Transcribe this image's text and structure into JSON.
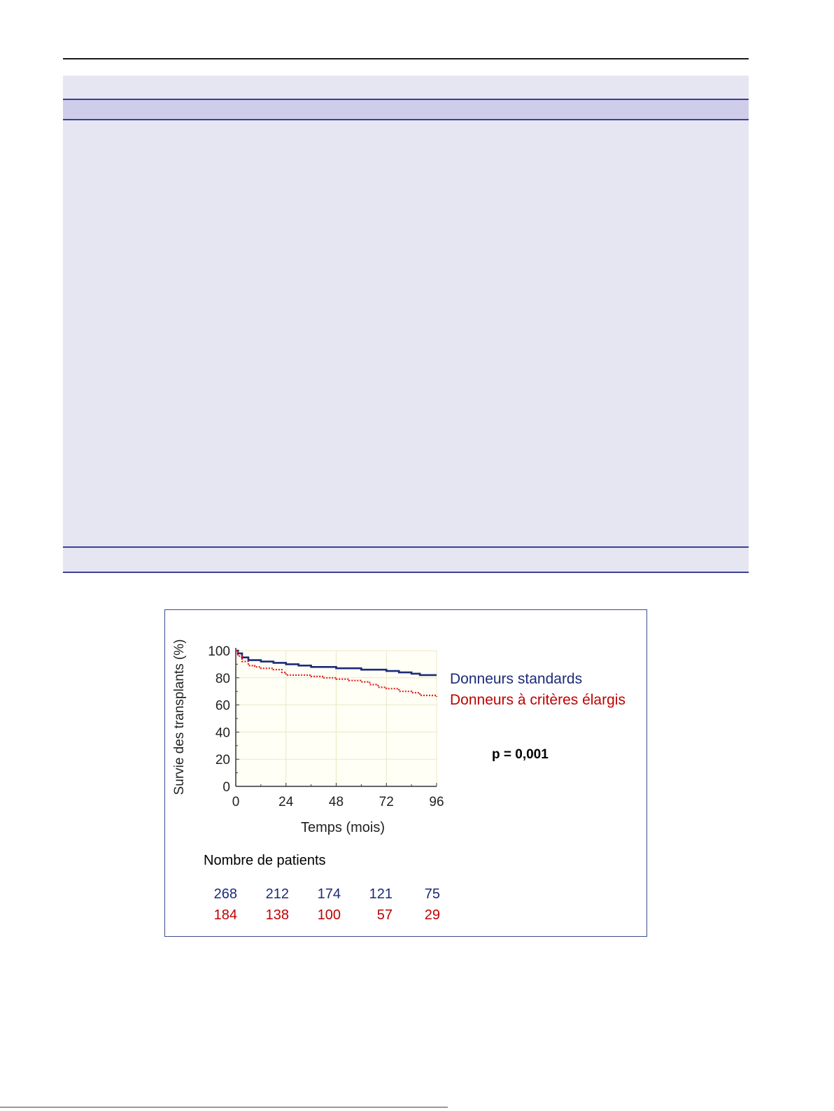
{
  "chart_data": {
    "type": "line",
    "xlabel": "Temps (mois)",
    "ylabel": "Survie des transplants (%)",
    "xlim": [
      0,
      96
    ],
    "ylim": [
      0,
      100
    ],
    "x_ticks": [
      0,
      24,
      48,
      72,
      96
    ],
    "y_ticks": [
      0,
      20,
      40,
      60,
      80,
      100
    ],
    "grid": true,
    "legend_placement": "right",
    "series": [
      {
        "name": "Donneurs standards",
        "color": "#1c2a7a",
        "style": "solid",
        "points": [
          [
            0,
            100
          ],
          [
            1,
            98
          ],
          [
            3,
            95
          ],
          [
            6,
            93
          ],
          [
            9,
            93
          ],
          [
            12,
            92
          ],
          [
            18,
            91
          ],
          [
            24,
            90
          ],
          [
            30,
            89
          ],
          [
            36,
            88
          ],
          [
            42,
            88
          ],
          [
            48,
            87
          ],
          [
            54,
            87
          ],
          [
            60,
            86
          ],
          [
            66,
            86
          ],
          [
            72,
            85
          ],
          [
            78,
            84
          ],
          [
            84,
            83
          ],
          [
            88,
            82
          ],
          [
            96,
            82
          ]
        ]
      },
      {
        "name": "Donneurs à critères élargis",
        "color": "#e02020",
        "style": "dotted",
        "points": [
          [
            0,
            100
          ],
          [
            1,
            96
          ],
          [
            3,
            92
          ],
          [
            6,
            89
          ],
          [
            9,
            88
          ],
          [
            12,
            87
          ],
          [
            18,
            86
          ],
          [
            22,
            84
          ],
          [
            24,
            82
          ],
          [
            30,
            82
          ],
          [
            36,
            81
          ],
          [
            42,
            80
          ],
          [
            48,
            79
          ],
          [
            54,
            78
          ],
          [
            60,
            77
          ],
          [
            64,
            75
          ],
          [
            68,
            73
          ],
          [
            72,
            72
          ],
          [
            78,
            70
          ],
          [
            84,
            69
          ],
          [
            88,
            67
          ],
          [
            96,
            66
          ]
        ]
      }
    ],
    "annotation": "p = 0,001"
  },
  "risk_table": {
    "title": "Nombre de patients",
    "rows": [
      {
        "color": "#1c2a7a",
        "values": [
          "268",
          "212",
          "174",
          "121",
          "75"
        ]
      },
      {
        "color": "#c00000",
        "values": [
          "184",
          "138",
          "100",
          "57",
          "29"
        ]
      }
    ]
  }
}
